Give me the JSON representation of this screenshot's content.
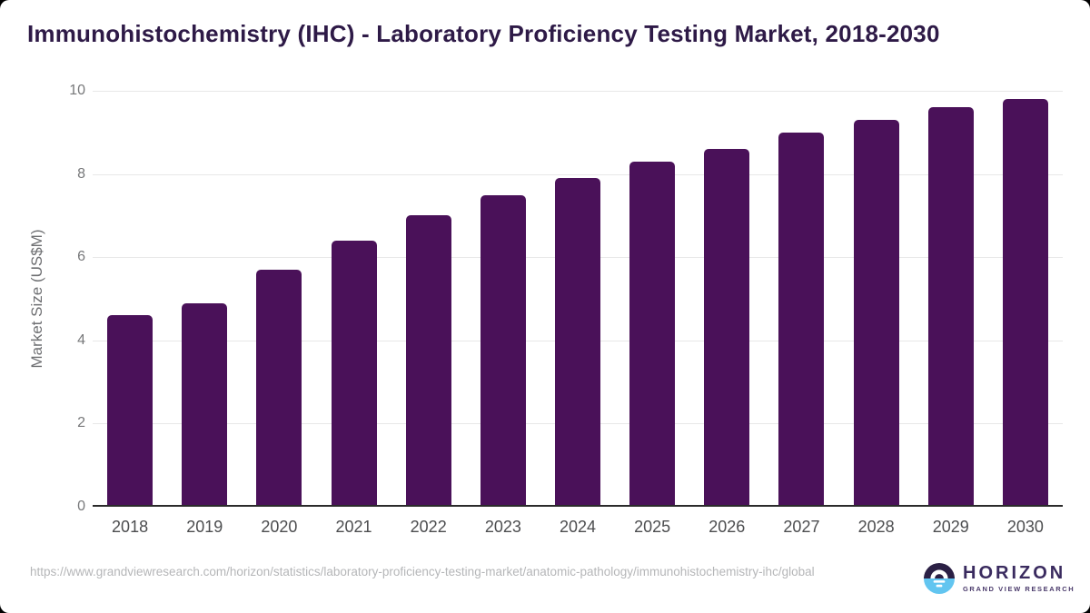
{
  "page": {
    "source_url": "https://www.grandviewresearch.com/horizon/statistics/laboratory-proficiency-testing-market/anatomic-pathology/immunohistochemistry-ihc/global",
    "brand": {
      "name": "HORIZON",
      "subtitle": "GRAND VIEW RESEARCH"
    }
  },
  "colors": {
    "bar": "#4A1159",
    "title": "#2E1A47",
    "gridline": "#E8E8E8",
    "axis_line": "#2B2B2B",
    "y_tick_label": "#77787A",
    "x_tick_label": "#4C4D4F",
    "axis_title": "#6E6F72",
    "source_text": "#B5B6B8",
    "logo_dark": "#2B2045",
    "logo_blue": "#62C5F0",
    "brand_text": "#3A2B5F"
  },
  "chart_data": {
    "type": "bar",
    "title": "Immunohistochemistry (IHC) - Laboratory Proficiency Testing Market, 2018-2030",
    "categories": [
      "2018",
      "2019",
      "2020",
      "2021",
      "2022",
      "2023",
      "2024",
      "2025",
      "2026",
      "2027",
      "2028",
      "2029",
      "2030"
    ],
    "values": [
      4.6,
      4.9,
      5.7,
      6.4,
      7.0,
      7.5,
      7.9,
      8.3,
      8.6,
      9.0,
      9.3,
      9.6,
      9.8
    ],
    "xlabel": "",
    "ylabel": "Market Size (US$M)",
    "ylim": [
      0,
      10
    ],
    "yticks": [
      0,
      2,
      4,
      6,
      8,
      10
    ],
    "grid": "horizontal",
    "legend": "none",
    "bar_color": "#4A1159"
  }
}
